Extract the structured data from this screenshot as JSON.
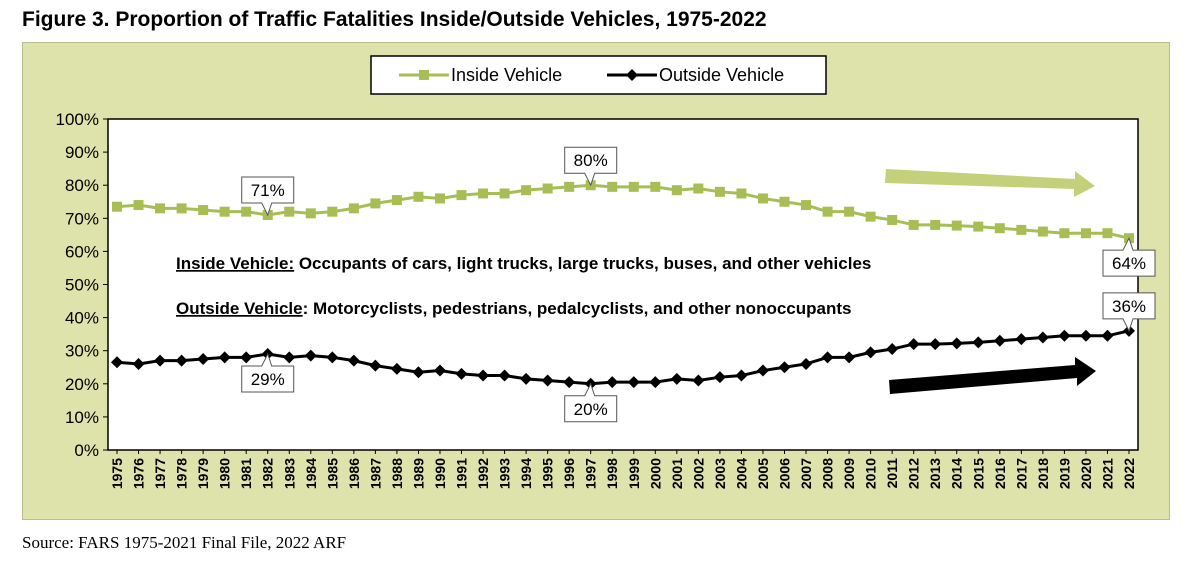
{
  "figure": {
    "title": "Figure 3. Proportion of Traffic Fatalities Inside/Outside Vehicles, 1975-2022",
    "source": "Source: FARS 1975-2021 Final File, 2022 ARF"
  },
  "chart_data": {
    "type": "line",
    "title": "Figure 3. Proportion of Traffic Fatalities Inside/Outside Vehicles, 1975-2022",
    "xlabel": "",
    "ylabel": "",
    "ylim": [
      0,
      100
    ],
    "yticks": [
      "0%",
      "10%",
      "20%",
      "30%",
      "40%",
      "50%",
      "60%",
      "70%",
      "80%",
      "90%",
      "100%"
    ],
    "categories": [
      "1975",
      "1976",
      "1977",
      "1978",
      "1979",
      "1980",
      "1981",
      "1982",
      "1983",
      "1984",
      "1985",
      "1986",
      "1987",
      "1988",
      "1989",
      "1990",
      "1991",
      "1992",
      "1993",
      "1994",
      "1995",
      "1996",
      "1997",
      "1998",
      "1999",
      "2000",
      "2001",
      "2002",
      "2003",
      "2004",
      "2005",
      "2006",
      "2007",
      "2008",
      "2009",
      "2010",
      "2011",
      "2012",
      "2013",
      "2014",
      "2015",
      "2016",
      "2017",
      "2018",
      "2019",
      "2020",
      "2021",
      "2022"
    ],
    "series": [
      {
        "name": "Inside Vehicle",
        "color": "#a9bd55",
        "marker": "square",
        "values": [
          73.5,
          74,
          73,
          73,
          72.5,
          72,
          72,
          71,
          72,
          71.5,
          72,
          73,
          74.5,
          75.5,
          76.5,
          76,
          77,
          77.5,
          77.5,
          78.5,
          79,
          79.5,
          80,
          79.5,
          79.5,
          79.5,
          78.5,
          79,
          78,
          77.5,
          76,
          75,
          74,
          72,
          72,
          70.5,
          69.5,
          68,
          68,
          67.8,
          67.5,
          67,
          66.5,
          66,
          65.5,
          65.5,
          65.5,
          64
        ]
      },
      {
        "name": "Outside Vehicle",
        "color": "#000000",
        "marker": "diamond",
        "values": [
          26.5,
          26,
          27,
          27,
          27.5,
          28,
          28,
          29,
          28,
          28.5,
          28,
          27,
          25.5,
          24.5,
          23.5,
          24,
          23,
          22.5,
          22.5,
          21.5,
          21,
          20.5,
          20,
          20.5,
          20.5,
          20.5,
          21.5,
          21,
          22,
          22.5,
          24,
          25,
          26,
          28,
          28,
          29.5,
          30.5,
          32,
          32,
          32.2,
          32.5,
          33,
          33.5,
          34,
          34.5,
          34.5,
          34.5,
          36
        ]
      }
    ],
    "callouts": [
      {
        "label": "71%",
        "year": "1982",
        "series": 0,
        "side": "above"
      },
      {
        "label": "80%",
        "year": "1997",
        "series": 0,
        "side": "above"
      },
      {
        "label": "64%",
        "year": "2022",
        "series": 0,
        "side": "below"
      },
      {
        "label": "29%",
        "year": "1982",
        "series": 1,
        "side": "below"
      },
      {
        "label": "20%",
        "year": "1997",
        "series": 1,
        "side": "below"
      },
      {
        "label": "36%",
        "year": "2022",
        "series": 1,
        "side": "above"
      }
    ],
    "annotations": [
      {
        "heading": "Inside Vehicle:",
        "text": " Occupants of cars, light trucks, large trucks, buses, and other vehicles"
      },
      {
        "heading": "Outside Vehicle",
        "text": ": Motorcyclists, pedestrians, pedalcyclists, and other nonoccupants"
      }
    ],
    "trend_arrows": [
      {
        "series": "Inside Vehicle",
        "direction": "down",
        "color": "#c5d07a"
      },
      {
        "series": "Outside Vehicle",
        "direction": "up",
        "color": "#000000"
      }
    ],
    "legend_position": "top-center",
    "grid": false
  }
}
